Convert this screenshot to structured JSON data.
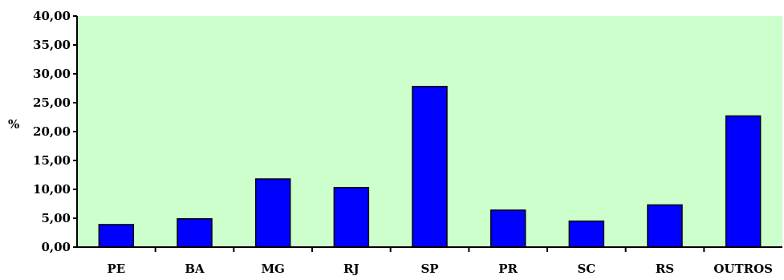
{
  "chart_data": {
    "type": "bar",
    "title": "",
    "xlabel": "",
    "ylabel": "%",
    "ylim": [
      0,
      40
    ],
    "yticks": [
      "0,00",
      "5,00",
      "10,00",
      "15,00",
      "20,00",
      "25,00",
      "30,00",
      "35,00",
      "40,00"
    ],
    "categories": [
      "PE",
      "BA",
      "MG",
      "RJ",
      "SP",
      "PR",
      "SC",
      "RS",
      "OUTROS"
    ],
    "values": [
      3.9,
      4.9,
      11.8,
      10.3,
      27.8,
      6.4,
      4.5,
      7.3,
      22.7
    ],
    "grid": false,
    "legend": "none",
    "colors": {
      "plot_background": "#ccffcc",
      "bar_fill": "#0000ff",
      "bar_stroke": "#000000",
      "axis": "#000000"
    }
  }
}
